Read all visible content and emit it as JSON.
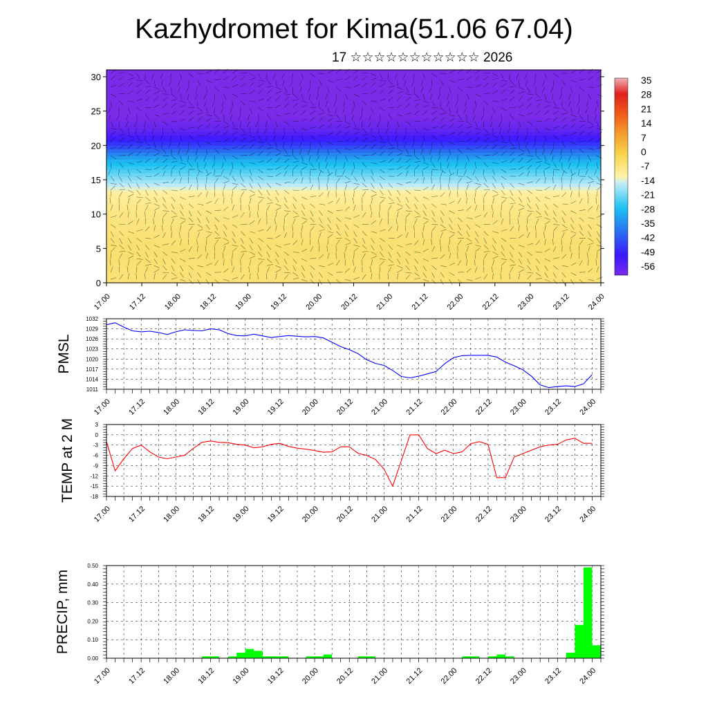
{
  "title": "Kazhydromet for Kima(51.06 67.04)",
  "subtitle": "17 ☆☆☆☆☆☆☆☆☆☆☆ 2026",
  "time_labels": [
    "17.00",
    "17.12",
    "18.00",
    "18.12",
    "19.00",
    "19.12",
    "20.00",
    "20.12",
    "21.00",
    "21.12",
    "22.00",
    "22.12",
    "23.00",
    "23.12",
    "24.00"
  ],
  "colorbar": {
    "labels": [
      "35",
      "28",
      "21",
      "14",
      "7",
      "0",
      "-7",
      "-14",
      "-21",
      "-28",
      "-35",
      "-42",
      "-49",
      "-56"
    ]
  },
  "chart_data": [
    {
      "type": "heatmap",
      "description_level_axis": "level index",
      "ylim": [
        0,
        31
      ],
      "yticks": [
        "0",
        "5",
        "10",
        "15",
        "20",
        "25",
        "30"
      ],
      "x": [
        "17.00",
        "17.12",
        "18.00",
        "18.12",
        "19.00",
        "19.12",
        "20.00",
        "20.12",
        "21.00",
        "21.12",
        "22.00",
        "22.12",
        "23.00",
        "23.12",
        "24.00"
      ],
      "color_scale": {
        "min": -56,
        "max": 35
      },
      "levels": [
        {
          "level": 0,
          "value": -5
        },
        {
          "level": 5,
          "value": -4
        },
        {
          "level": 10,
          "value": -6
        },
        {
          "level": 13,
          "value": -9
        },
        {
          "level": 15,
          "value": -17
        },
        {
          "level": 18,
          "value": -28
        },
        {
          "level": 20,
          "value": -42
        },
        {
          "level": 22,
          "value": -52
        },
        {
          "level": 25,
          "value": -58
        },
        {
          "level": 31,
          "value": -60
        }
      ]
    },
    {
      "type": "line",
      "ylabel": "PMSL",
      "ylim": [
        1011,
        1032
      ],
      "yticks": [
        "1032",
        "1029",
        "1026",
        "1023",
        "1020",
        "1017",
        "1014",
        "1011"
      ],
      "color": "#0000ff",
      "x": [
        0,
        3,
        6,
        9,
        12,
        15,
        18,
        21,
        24,
        27,
        30,
        33,
        36,
        39,
        42,
        45,
        48,
        51,
        54,
        57,
        60,
        63,
        66,
        69,
        72,
        75,
        78,
        81,
        84,
        87,
        90,
        93,
        96,
        99,
        102,
        105,
        108,
        111,
        114,
        117,
        120,
        123,
        126,
        129,
        132,
        135,
        138,
        141,
        144,
        147,
        150,
        153,
        156,
        159,
        162,
        165,
        168
      ],
      "values": [
        1030.2,
        1030.8,
        1029.5,
        1028.4,
        1028.1,
        1028.3,
        1027.9,
        1027.3,
        1028.1,
        1028.7,
        1028.5,
        1028.4,
        1029.0,
        1028.7,
        1027.6,
        1027.0,
        1026.9,
        1027.4,
        1026.9,
        1026.4,
        1026.7,
        1027.0,
        1026.8,
        1026.6,
        1026.7,
        1026.3,
        1025.0,
        1023.7,
        1022.8,
        1021.6,
        1019.8,
        1018.7,
        1018.1,
        1016.6,
        1014.8,
        1014.4,
        1014.9,
        1015.6,
        1016.3,
        1018.6,
        1020.4,
        1021.0,
        1021.1,
        1021.1,
        1021.1,
        1020.6,
        1019.1,
        1018.0,
        1016.8,
        1014.9,
        1012.3,
        1011.5,
        1011.8,
        1012.0,
        1011.8,
        1012.6,
        1015.4
      ]
    },
    {
      "type": "line",
      "ylabel": "TEMP at 2 M",
      "ylim": [
        -18,
        3
      ],
      "yticks": [
        "3",
        "0",
        "-3",
        "-6",
        "-9",
        "-12",
        "-15",
        "-18"
      ],
      "color": "#ff0000",
      "x": [
        0,
        3,
        6,
        9,
        12,
        15,
        18,
        21,
        24,
        27,
        30,
        33,
        36,
        39,
        42,
        45,
        48,
        51,
        54,
        57,
        60,
        63,
        66,
        69,
        72,
        75,
        78,
        81,
        84,
        87,
        90,
        93,
        96,
        99,
        102,
        105,
        108,
        111,
        114,
        117,
        120,
        123,
        126,
        129,
        132,
        135,
        138,
        141,
        144,
        147,
        150,
        153,
        156,
        159,
        162,
        165,
        168
      ],
      "values": [
        -2,
        -10.5,
        -7,
        -4,
        -3,
        -5,
        -6.5,
        -7,
        -6.5,
        -6,
        -4,
        -2.2,
        -1.8,
        -2.2,
        -2.3,
        -2.8,
        -3,
        -3.8,
        -3.5,
        -2.8,
        -2.5,
        -3.4,
        -3.9,
        -4.2,
        -4.6,
        -5.1,
        -5,
        -3.5,
        -3.5,
        -5.4,
        -6,
        -7.2,
        -10,
        -15,
        -7.5,
        0,
        0,
        -4,
        -5.5,
        -4.5,
        -5.5,
        -5,
        -2.6,
        -2,
        -2.8,
        -12.5,
        -12.5,
        -6.5,
        -5.5,
        -4.5,
        -3.5,
        -3,
        -2.8,
        -1.5,
        -1,
        -2.5,
        -2.5
      ]
    },
    {
      "type": "bar",
      "ylabel": "PRECIP, mm",
      "ylim": [
        0,
        0.5
      ],
      "yticks": [
        "0.50",
        "0.40",
        "0.30",
        "0.20",
        "0.10",
        "0.00"
      ],
      "color": "#00ff00",
      "bars": [
        {
          "start": 33,
          "end": 39,
          "value": 0.01
        },
        {
          "start": 42,
          "end": 45,
          "value": 0.01
        },
        {
          "start": 45,
          "end": 48,
          "value": 0.03
        },
        {
          "start": 48,
          "end": 51,
          "value": 0.05
        },
        {
          "start": 51,
          "end": 54,
          "value": 0.04
        },
        {
          "start": 54,
          "end": 63,
          "value": 0.01
        },
        {
          "start": 69,
          "end": 72,
          "value": 0.01
        },
        {
          "start": 72,
          "end": 75,
          "value": 0.01
        },
        {
          "start": 75,
          "end": 78,
          "value": 0.02
        },
        {
          "start": 87,
          "end": 93,
          "value": 0.01
        },
        {
          "start": 123,
          "end": 129,
          "value": 0.01
        },
        {
          "start": 132,
          "end": 135,
          "value": 0.01
        },
        {
          "start": 135,
          "end": 138,
          "value": 0.02
        },
        {
          "start": 138,
          "end": 141,
          "value": 0.01
        },
        {
          "start": 159,
          "end": 162,
          "value": 0.03
        },
        {
          "start": 162,
          "end": 165,
          "value": 0.18
        },
        {
          "start": 165,
          "end": 168,
          "value": 0.49
        },
        {
          "start": 168,
          "end": 171,
          "value": 0.07
        }
      ]
    }
  ]
}
